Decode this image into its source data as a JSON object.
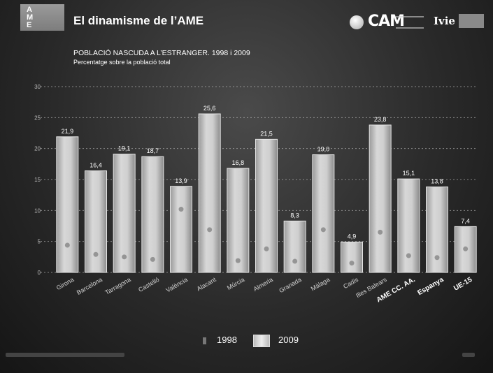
{
  "header": {
    "logo_letters": [
      "A",
      "M",
      "E"
    ],
    "title": "El dinamisme de l’AME",
    "sponsor_cam": "CAM",
    "sponsor_ivie": "Ivie"
  },
  "legend": {
    "label_1998": "1998",
    "label_2009": "2009"
  },
  "chart_data": {
    "type": "bar",
    "title": "POBLACIÓ NASCUDA A L’ESTRANGER. 1998 i 2009",
    "subtitle": "Percentatge sobre la població total",
    "categories": [
      "Girona",
      "Barcelona",
      "Tarragona",
      "Castelló",
      "València",
      "Alacant",
      "Múrcia",
      "Almeria",
      "Granada",
      "Màlaga",
      "Cadis",
      "Illes Balears",
      "AME CC. AA.",
      "Espanya",
      "UE-15"
    ],
    "emphasized_categories": [
      "AME CC. AA.",
      "Espanya",
      "UE-15"
    ],
    "series": [
      {
        "name": "1998",
        "values": [
          4.4,
          2.9,
          2.5,
          2.1,
          10.2,
          6.9,
          1.9,
          3.8,
          1.8,
          6.9,
          1.5,
          6.5,
          2.7,
          2.4,
          3.8
        ]
      },
      {
        "name": "2009",
        "values": [
          21.9,
          16.4,
          19.1,
          18.7,
          13.9,
          25.6,
          16.8,
          21.5,
          8.3,
          19.0,
          4.9,
          23.8,
          15.1,
          13.8,
          7.4
        ]
      }
    ],
    "data_labels_2009": [
      "21,9",
      "16,4",
      "19,1",
      "18,7",
      "13,9",
      "25,6",
      "16,8",
      "21,5",
      "8,3",
      "19,0",
      "4,9",
      "23,8",
      "15,1",
      "13,8",
      "7,4"
    ],
    "yticks": [
      0,
      5,
      10,
      15,
      20,
      25,
      30
    ],
    "ylim": [
      0,
      30
    ],
    "grid": true,
    "legend_position": "bottom-center",
    "colors": {
      "bar_2009": "#c8c8c8",
      "marker_1998": "#8a8a8a",
      "grid": "#b0b0b0"
    }
  }
}
